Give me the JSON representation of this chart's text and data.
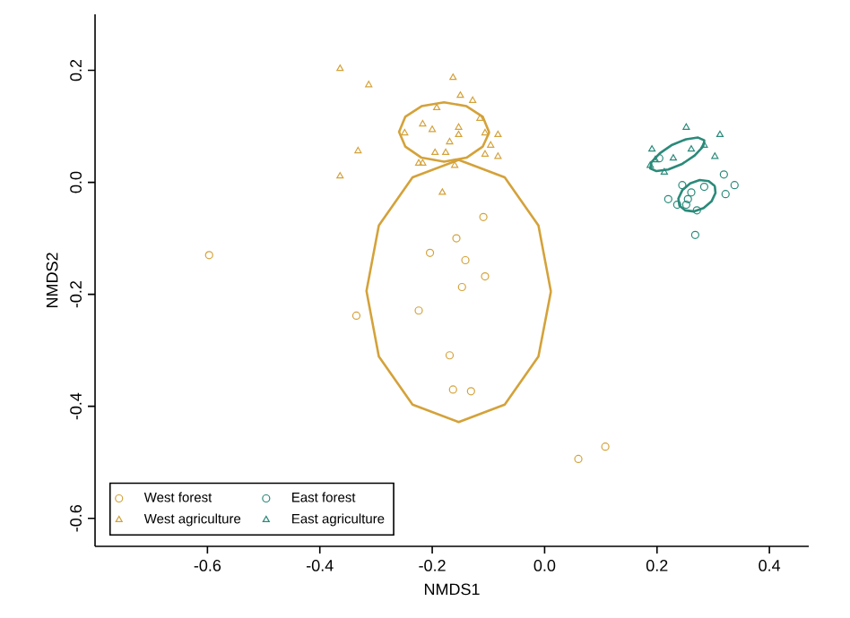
{
  "chart_data": {
    "type": "scatter",
    "xlabel": "NMDS1",
    "ylabel": "NMDS2",
    "xlim": [
      -0.8,
      0.47
    ],
    "ylim": [
      -0.65,
      0.3
    ],
    "xticks": [
      -0.6,
      -0.4,
      -0.2,
      {
        "value": 0,
        "label": "0.0"
      },
      0.2,
      0.4
    ],
    "yticks": [
      -0.6,
      -0.4,
      -0.2,
      {
        "value": 0,
        "label": "0.0"
      },
      0.2
    ],
    "grid": false,
    "legend": "bottom left",
    "series": [
      {
        "name": "West forest",
        "marker": "circle",
        "color": "#d4a23a",
        "x": [
          -0.597,
          -0.335,
          -0.224,
          -0.204,
          -0.109,
          -0.157,
          -0.141,
          -0.106,
          -0.147,
          -0.169,
          -0.163,
          -0.131,
          0.06,
          0.108
        ],
        "values": [
          -0.13,
          -0.238,
          -0.229,
          -0.126,
          -0.062,
          -0.1,
          -0.139,
          -0.168,
          -0.187,
          -0.309,
          -0.37,
          -0.373,
          -0.494,
          -0.472
        ]
      },
      {
        "name": "East forest",
        "marker": "circle",
        "color": "#2a8a7a",
        "x": [
          0.319,
          0.338,
          0.322,
          0.22,
          0.245,
          0.252,
          0.271,
          0.268,
          0.261,
          0.284,
          0.236,
          0.255,
          0.204
        ],
        "values": [
          0.014,
          -0.005,
          -0.021,
          -0.03,
          -0.005,
          -0.04,
          -0.05,
          -0.094,
          -0.018,
          -0.008,
          -0.04,
          -0.03,
          0.043
        ]
      },
      {
        "name": "West agriculture",
        "marker": "triangle",
        "color": "#d4a23a",
        "x": [
          -0.364,
          -0.313,
          -0.332,
          -0.364,
          -0.249,
          -0.217,
          -0.217,
          -0.163,
          -0.15,
          -0.128,
          -0.192,
          -0.2,
          -0.153,
          -0.153,
          -0.169,
          -0.115,
          -0.106,
          -0.083,
          -0.096,
          -0.083,
          -0.195,
          -0.176,
          -0.106,
          -0.224,
          -0.16,
          -0.182
        ],
        "values": [
          0.203,
          0.174,
          0.056,
          0.011,
          0.088,
          0.104,
          0.034,
          0.187,
          0.155,
          0.146,
          0.133,
          0.094,
          0.098,
          0.085,
          0.072,
          0.114,
          0.088,
          0.085,
          0.066,
          0.046,
          0.053,
          0.053,
          0.05,
          0.034,
          0.03,
          -0.018
        ]
      },
      {
        "name": "East agriculture",
        "marker": "triangle",
        "color": "#2a8a7a",
        "x": [
          0.252,
          0.312,
          0.303,
          0.191,
          0.188,
          0.213,
          0.261,
          0.284,
          0.229,
          0.197
        ],
        "values": [
          0.098,
          0.085,
          0.046,
          0.059,
          0.03,
          0.018,
          0.059,
          0.066,
          0.043,
          0.04
        ]
      },
      {
        "type": "line",
        "marker": "none",
        "line_style": "solid",
        "color": "#d4a23a",
        "x": [
          0.011,
          -0.011,
          -0.071,
          -0.153,
          -0.235,
          -0.295,
          -0.317,
          -0.295,
          -0.235,
          -0.153,
          -0.071,
          -0.011,
          0.011
        ],
        "values": [
          -0.194,
          -0.077,
          0.009,
          0.04,
          0.009,
          -0.077,
          -0.194,
          -0.311,
          -0.397,
          -0.428,
          -0.397,
          -0.311,
          -0.196
        ]
      },
      {
        "type": "line",
        "marker": "none",
        "line_style": "solid",
        "color": "#d4a23a",
        "x": [
          -0.099,
          -0.11,
          -0.139,
          -0.179,
          -0.219,
          -0.248,
          -0.259,
          -0.248,
          -0.219,
          -0.179,
          -0.139,
          -0.11,
          -0.099
        ],
        "values": [
          0.09,
          0.117,
          0.136,
          0.143,
          0.136,
          0.117,
          0.09,
          0.064,
          0.044,
          0.037,
          0.044,
          0.064,
          0.088
        ]
      },
      {
        "type": "line",
        "marker": "none",
        "line_style": "solid",
        "color": "#2a8a7a",
        "x": [
          0.284,
          0.273,
          0.252,
          0.227,
          0.205,
          0.19,
          0.188,
          0.199,
          0.22,
          0.245,
          0.267,
          0.282,
          0.284
        ],
        "values": [
          0.075,
          0.08,
          0.077,
          0.067,
          0.052,
          0.036,
          0.025,
          0.02,
          0.023,
          0.033,
          0.048,
          0.064,
          0.073
        ]
      },
      {
        "type": "line",
        "marker": "none",
        "line_style": "solid",
        "color": "#2a8a7a",
        "x": [
          0.302,
          0.292,
          0.276,
          0.259,
          0.245,
          0.238,
          0.24,
          0.25,
          0.266,
          0.283,
          0.297,
          0.304,
          0.303
        ],
        "values": [
          -0.006,
          0.002,
          0.004,
          -0.002,
          -0.014,
          -0.029,
          -0.042,
          -0.05,
          -0.052,
          -0.046,
          -0.034,
          -0.019,
          -0.008
        ]
      }
    ]
  }
}
